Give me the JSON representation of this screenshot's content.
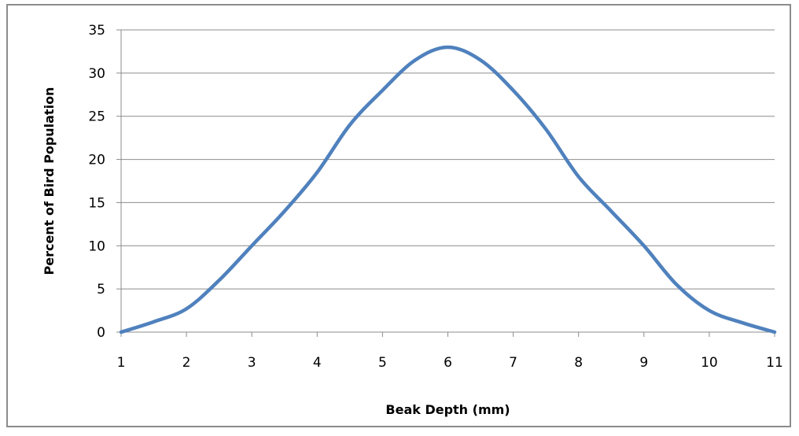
{
  "chart_data": {
    "type": "line",
    "title": "",
    "xlabel": "Beak Depth (mm)",
    "ylabel": "Percent of Bird Population",
    "xlim": [
      1,
      11
    ],
    "ylim": [
      0,
      35
    ],
    "x_ticks": [
      "1",
      "2",
      "3",
      "4",
      "5",
      "6",
      "7",
      "8",
      "9",
      "10",
      "11"
    ],
    "y_ticks": [
      "0",
      "5",
      "10",
      "15",
      "20",
      "25",
      "30",
      "35"
    ],
    "grid": "horizontal",
    "legend": "none",
    "series": [
      {
        "color": "#4f81bd",
        "x": [
          1,
          1.5,
          2,
          2.5,
          3,
          3.5,
          4,
          4.5,
          5,
          5.5,
          6,
          6.5,
          7,
          7.5,
          8,
          8.5,
          9,
          9.5,
          10,
          10.5,
          11
        ],
        "y": [
          0,
          1.2,
          2.7,
          6.0,
          10.0,
          14.0,
          18.5,
          24.0,
          28.0,
          31.5,
          33.0,
          31.5,
          28.0,
          23.5,
          18.0,
          14.0,
          10.0,
          5.5,
          2.5,
          1.1,
          0
        ]
      }
    ]
  }
}
